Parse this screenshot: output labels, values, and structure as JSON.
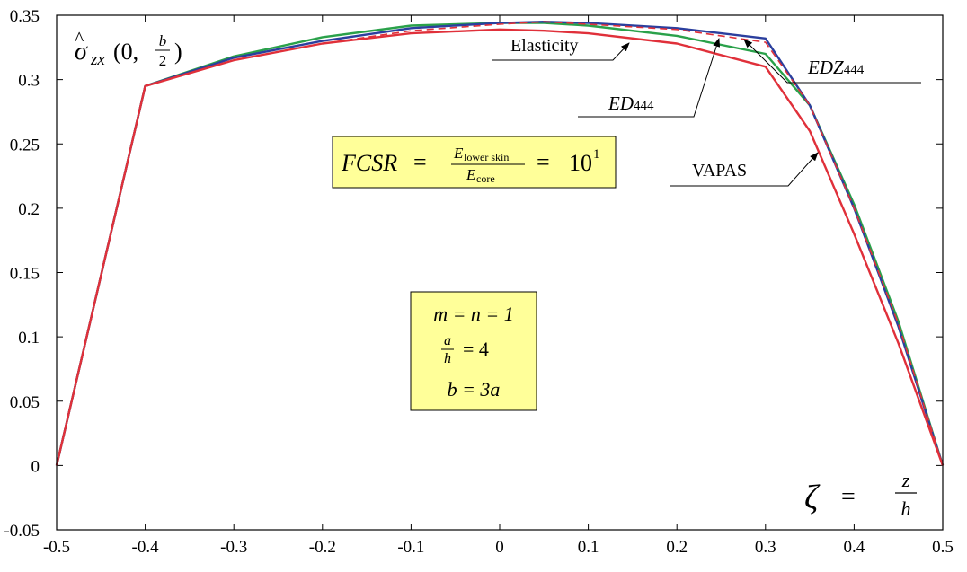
{
  "chart_data": {
    "type": "line",
    "xlim": [
      -0.5,
      0.5
    ],
    "ylim": [
      -0.05,
      0.35
    ],
    "x_ticks": [
      -0.5,
      -0.4,
      -0.3,
      -0.2,
      -0.1,
      0,
      0.1,
      0.2,
      0.3,
      0.4,
      0.5
    ],
    "x_tick_labels": [
      "-0.5",
      "-0.4",
      "-0.3",
      "-0.2",
      "-0.1",
      "0",
      "0.1",
      "0.2",
      "0.3",
      "0.4",
      "0.5"
    ],
    "y_ticks": [
      -0.05,
      0,
      0.05,
      0.1,
      0.15,
      0.2,
      0.25,
      0.3,
      0.35
    ],
    "y_tick_labels": [
      "-0.05",
      "0",
      "0.05",
      "0.1",
      "0.15",
      "0.2",
      "0.25",
      "0.3",
      "0.35"
    ],
    "grid": false,
    "ylabel": "σ̂zx(0, b/2)",
    "xlabel": "ζ = z/h",
    "series": [
      {
        "name": "Elasticity",
        "color": "#e0303a",
        "dash": "8,5",
        "x": [
          -0.5,
          -0.4,
          -0.3,
          -0.2,
          -0.1,
          0.0,
          0.05,
          0.1,
          0.2,
          0.3,
          0.35,
          0.4,
          0.45,
          0.5
        ],
        "y": [
          0.0,
          0.295,
          0.315,
          0.328,
          0.338,
          0.343,
          0.345,
          0.343,
          0.339,
          0.329,
          0.28,
          0.2,
          0.11,
          0.0
        ]
      },
      {
        "name": "ED444",
        "color": "#2b3f9e",
        "dash": "",
        "x": [
          -0.5,
          -0.4,
          -0.3,
          -0.2,
          -0.1,
          0.0,
          0.05,
          0.1,
          0.2,
          0.3,
          0.35,
          0.4,
          0.45,
          0.5
        ],
        "y": [
          0.0,
          0.295,
          0.317,
          0.33,
          0.34,
          0.344,
          0.345,
          0.344,
          0.34,
          0.332,
          0.28,
          0.2,
          0.108,
          0.0
        ]
      },
      {
        "name": "EDZ444",
        "color": "#2aa14a",
        "dash": "",
        "x": [
          -0.5,
          -0.4,
          -0.3,
          -0.2,
          -0.1,
          0.0,
          0.05,
          0.1,
          0.2,
          0.3,
          0.35,
          0.4,
          0.45,
          0.5
        ],
        "y": [
          0.0,
          0.295,
          0.318,
          0.333,
          0.342,
          0.344,
          0.344,
          0.342,
          0.334,
          0.32,
          0.28,
          0.203,
          0.112,
          0.0
        ]
      },
      {
        "name": "VAPAS",
        "color": "#e0303a",
        "dash": "",
        "x": [
          -0.5,
          -0.4,
          -0.3,
          -0.2,
          -0.1,
          0.0,
          0.05,
          0.1,
          0.2,
          0.3,
          0.35,
          0.4,
          0.45,
          0.5
        ],
        "y": [
          0.0,
          0.295,
          0.315,
          0.328,
          0.336,
          0.339,
          0.338,
          0.336,
          0.328,
          0.31,
          0.26,
          0.18,
          0.095,
          0.0
        ]
      }
    ],
    "curve_labels": {
      "elasticity": "Elasticity",
      "ed_base": "ED",
      "ed_sub": "444",
      "edz_base": "EDZ",
      "edz_sub": "444",
      "vapas": "VAPAS"
    },
    "annotations": {
      "ratio_box": {
        "lhs": "FCSR",
        "numerator": "E",
        "numerator_sub": "lower skin",
        "denominator": "E",
        "denominator_sub": "core",
        "rhs_base": "10",
        "rhs_exp": "1"
      },
      "param_box": {
        "line1": "m = n = 1",
        "line2_num": "a",
        "line2_den": "h",
        "line2_rhs": "= 4",
        "line3": "b = 3a"
      },
      "y_axis_label": {
        "symbol": "σ",
        "hat": "^",
        "sub": "zx",
        "arg_open": "(0, ",
        "arg_num": "b",
        "arg_den": "2",
        "arg_close": ")"
      },
      "x_axis_label": {
        "symbol": "ζ",
        "eq": "=",
        "num": "z",
        "den": "h"
      }
    },
    "colors": {
      "box_fill": "#ffff99",
      "axis": "#000000"
    }
  }
}
